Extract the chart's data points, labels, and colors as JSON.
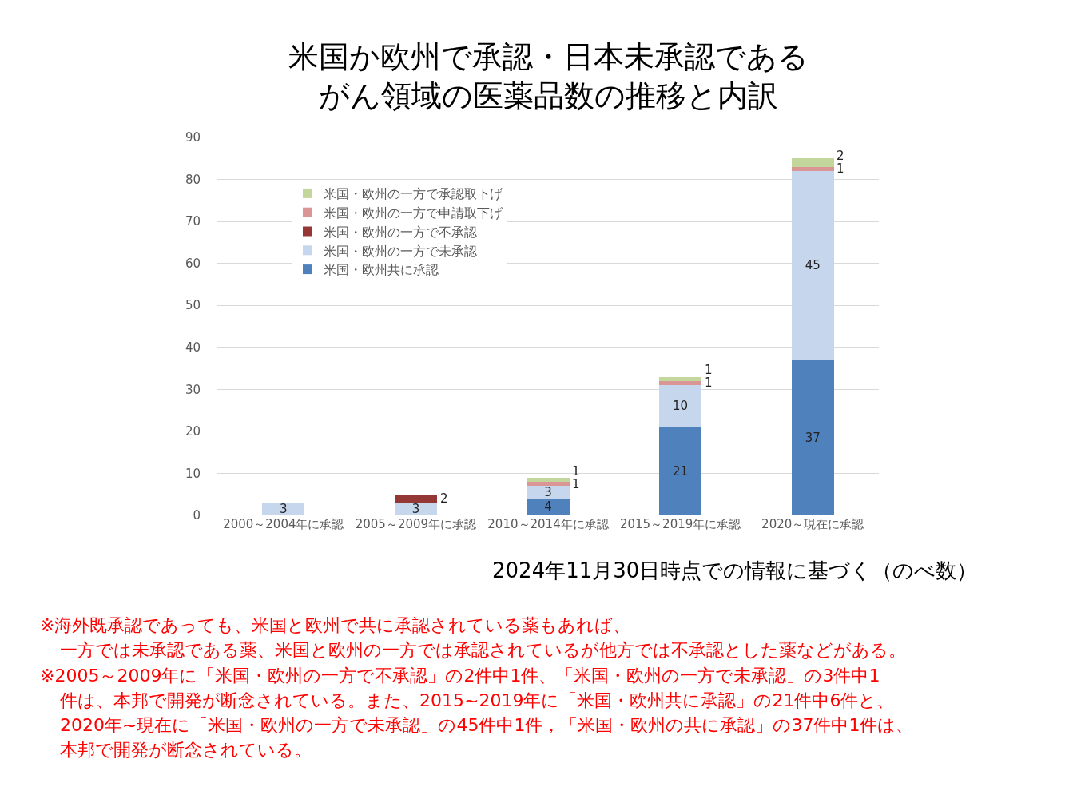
{
  "chart_data": {
    "type": "bar",
    "title": "米国か欧州で承認・日本未承認であるがん領域の医薬品数の推移と内訳",
    "categories": [
      "2000～2004年に承認",
      "2005～2009年に承認",
      "2010～2014年に承認",
      "2015～2019年に承認",
      "2020～現在に承認"
    ],
    "stacked": true,
    "series": [
      {
        "name": "米国・欧州共に承認",
        "color": "#4f81bd",
        "values": [
          null,
          null,
          4,
          21,
          37
        ]
      },
      {
        "name": "米国・欧州の一方で未承認",
        "color": "#c6d6ec",
        "values": [
          3,
          3,
          3,
          10,
          45
        ]
      },
      {
        "name": "米国・欧州の一方で不承認",
        "color": "#953735",
        "values": [
          null,
          2,
          null,
          null,
          null
        ]
      },
      {
        "name": "米国・欧州の一方で申請取下げ",
        "color": "#d99694",
        "values": [
          null,
          null,
          1,
          1,
          1
        ]
      },
      {
        "name": "米国・欧州の一方で承認取下げ",
        "color": "#c3d69b",
        "values": [
          null,
          null,
          1,
          1,
          2
        ]
      }
    ],
    "data_labels": true,
    "ylim": [
      0,
      90
    ],
    "yticks": [
      0,
      10,
      20,
      30,
      40,
      50,
      60,
      70,
      80,
      90
    ],
    "grid": "y",
    "legend": "top left",
    "annotations": [
      "2024年11月30日時点での情報に基づく（のべ数）",
      "※海外既承認であっても、米国と欧州で共に承認されている薬もあれば、",
      "一方では未承認である薬、米国と欧州の一方では承認されているが他方では不承認とした薬などがある。",
      "※2005～2009年に「米国・欧州の一方で不承認」の2件中1件、「米国・欧州の一方で未承認」の3件中1",
      "件は、本邦で開発が断念されている。また、2015~2019年に「米国・欧州共に承認」の21件中6件と、",
      "2020年~現在に「米国・欧州の一方で未承認」の45件中1件，「米国・欧州の共に承認」の37件中1件は、",
      "本邦で開発が断念されている。"
    ]
  }
}
